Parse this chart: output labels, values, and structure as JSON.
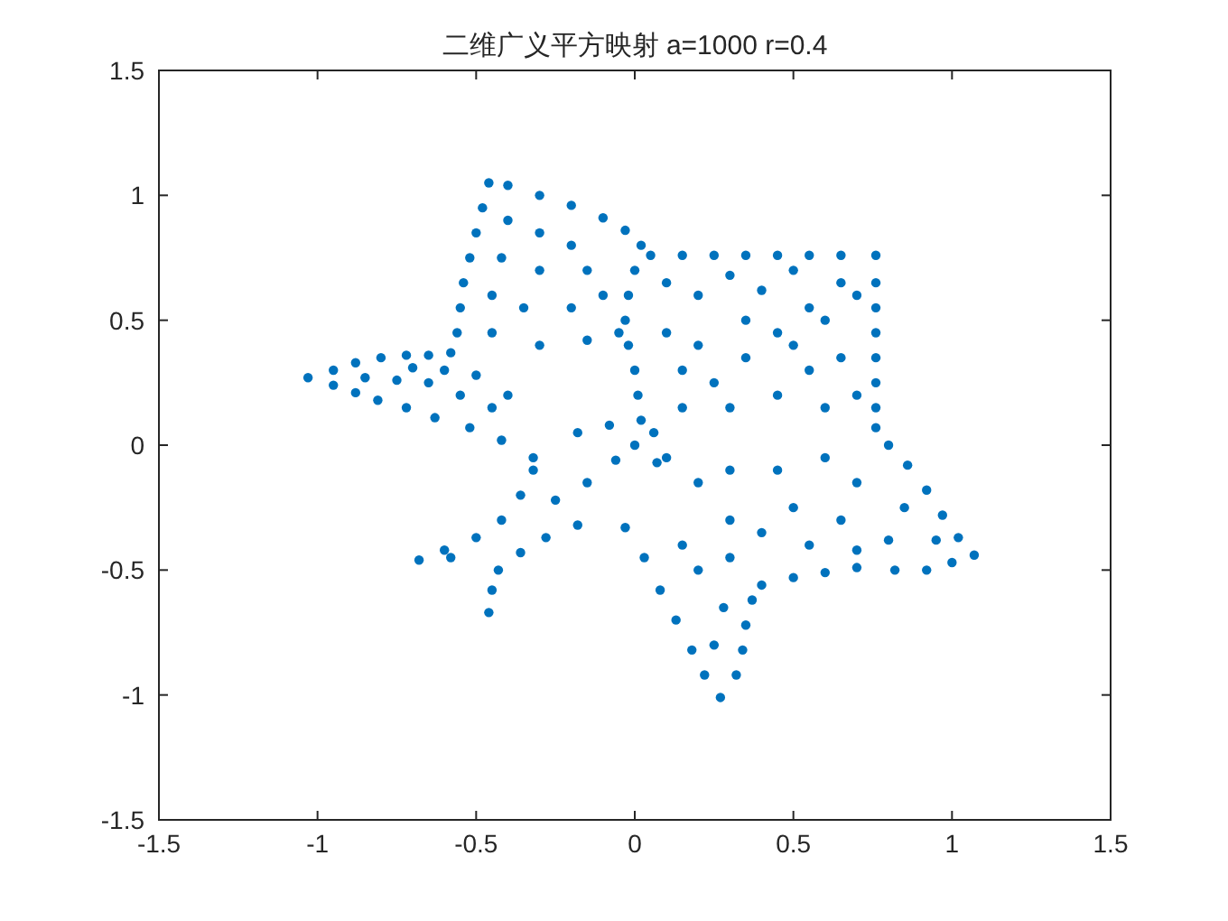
{
  "chart_data": {
    "type": "scatter",
    "title": "二维广义平方映射 a=1000 r=0.4",
    "x": [
      -1.03,
      -0.95,
      -0.88,
      -0.8,
      -0.72,
      -0.65,
      -0.58,
      -0.95,
      -0.88,
      -0.81,
      -0.72,
      -0.63,
      -0.52,
      -0.42,
      -0.32,
      -0.85,
      -0.75,
      -0.65,
      -0.7,
      -0.55,
      -0.6,
      -0.45,
      -0.5,
      -0.4,
      -0.46,
      -0.4,
      -0.3,
      -0.2,
      -0.1,
      -0.03,
      0.02,
      -0.48,
      -0.5,
      -0.52,
      -0.54,
      -0.55,
      -0.56,
      -0.4,
      -0.3,
      -0.2,
      -0.42,
      -0.3,
      -0.15,
      -0.45,
      -0.35,
      -0.2,
      -0.1,
      -0.45,
      -0.3,
      -0.15,
      -0.05,
      0.0,
      -0.02,
      -0.03,
      -0.02,
      0.0,
      0.01,
      0.02,
      0.05,
      0.15,
      0.25,
      0.35,
      0.45,
      0.55,
      0.65,
      0.76,
      0.76,
      0.76,
      0.76,
      0.76,
      0.76,
      0.76,
      0.76,
      0.65,
      0.55,
      0.45,
      0.35,
      0.25,
      0.15,
      0.1,
      0.2,
      0.3,
      0.4,
      0.5,
      0.6,
      0.7,
      0.65,
      0.55,
      0.7,
      0.45,
      0.6,
      0.1,
      0.2,
      0.35,
      0.5,
      0.3,
      0.15,
      0.8,
      0.86,
      0.92,
      0.97,
      1.02,
      1.07,
      1.0,
      0.92,
      0.82,
      0.7,
      0.6,
      0.5,
      0.4,
      0.3,
      0.45,
      0.6,
      0.7,
      0.85,
      0.95,
      0.5,
      0.65,
      0.8,
      0.4,
      0.55,
      0.7,
      0.3,
      0.2,
      0.1,
      0.37,
      0.35,
      0.34,
      0.32,
      0.27,
      0.22,
      0.18,
      0.13,
      0.08,
      0.03,
      -0.03,
      0.25,
      0.28,
      0.2,
      0.15,
      0.3,
      -0.68,
      -0.6,
      -0.5,
      -0.42,
      -0.36,
      -0.32,
      -0.58,
      -0.46,
      -0.45,
      -0.43,
      -0.36,
      -0.28,
      -0.18,
      -0.25,
      -0.15,
      0.0,
      0.06,
      -0.06,
      0.07,
      -0.08,
      -0.18
    ],
    "values": [
      0.27,
      0.3,
      0.33,
      0.35,
      0.36,
      0.36,
      0.37,
      0.24,
      0.21,
      0.18,
      0.15,
      0.11,
      0.07,
      0.02,
      -0.05,
      0.27,
      0.26,
      0.25,
      0.31,
      0.2,
      0.3,
      0.15,
      0.28,
      0.2,
      1.05,
      1.04,
      1.0,
      0.96,
      0.91,
      0.86,
      0.8,
      0.95,
      0.85,
      0.75,
      0.65,
      0.55,
      0.45,
      0.9,
      0.85,
      0.8,
      0.75,
      0.7,
      0.7,
      0.6,
      0.55,
      0.55,
      0.6,
      0.45,
      0.4,
      0.42,
      0.45,
      0.7,
      0.6,
      0.5,
      0.4,
      0.3,
      0.2,
      0.1,
      0.76,
      0.76,
      0.76,
      0.76,
      0.76,
      0.76,
      0.76,
      0.76,
      0.65,
      0.55,
      0.45,
      0.35,
      0.25,
      0.15,
      0.07,
      0.65,
      0.55,
      0.45,
      0.35,
      0.25,
      0.15,
      0.65,
      0.6,
      0.68,
      0.62,
      0.7,
      0.5,
      0.6,
      0.35,
      0.3,
      0.2,
      0.2,
      0.15,
      0.45,
      0.4,
      0.5,
      0.4,
      0.15,
      0.3,
      0.0,
      -0.08,
      -0.18,
      -0.28,
      -0.37,
      -0.44,
      -0.47,
      -0.5,
      -0.5,
      -0.49,
      -0.51,
      -0.53,
      -0.56,
      -0.1,
      -0.1,
      -0.05,
      -0.15,
      -0.25,
      -0.38,
      -0.25,
      -0.3,
      -0.38,
      -0.35,
      -0.4,
      -0.42,
      -0.3,
      -0.15,
      -0.05,
      -0.62,
      -0.72,
      -0.82,
      -0.92,
      -1.01,
      -0.92,
      -0.82,
      -0.7,
      -0.58,
      -0.45,
      -0.33,
      -0.8,
      -0.65,
      -0.5,
      -0.4,
      -0.45,
      -0.46,
      -0.42,
      -0.37,
      -0.3,
      -0.2,
      -0.1,
      -0.45,
      -0.67,
      -0.58,
      -0.5,
      -0.43,
      -0.37,
      -0.32,
      -0.22,
      -0.15,
      0.0,
      0.05,
      -0.06,
      -0.07,
      0.08,
      0.05
    ],
    "color": "#0072bd",
    "marker": "circle",
    "xlim": [
      -1.5,
      1.5
    ],
    "ylim": [
      -1.5,
      1.5
    ],
    "xticks": [
      -1.5,
      -1,
      -0.5,
      0,
      0.5,
      1,
      1.5
    ],
    "yticks": [
      -1.5,
      -1,
      -0.5,
      0,
      0.5,
      1,
      1.5
    ]
  }
}
